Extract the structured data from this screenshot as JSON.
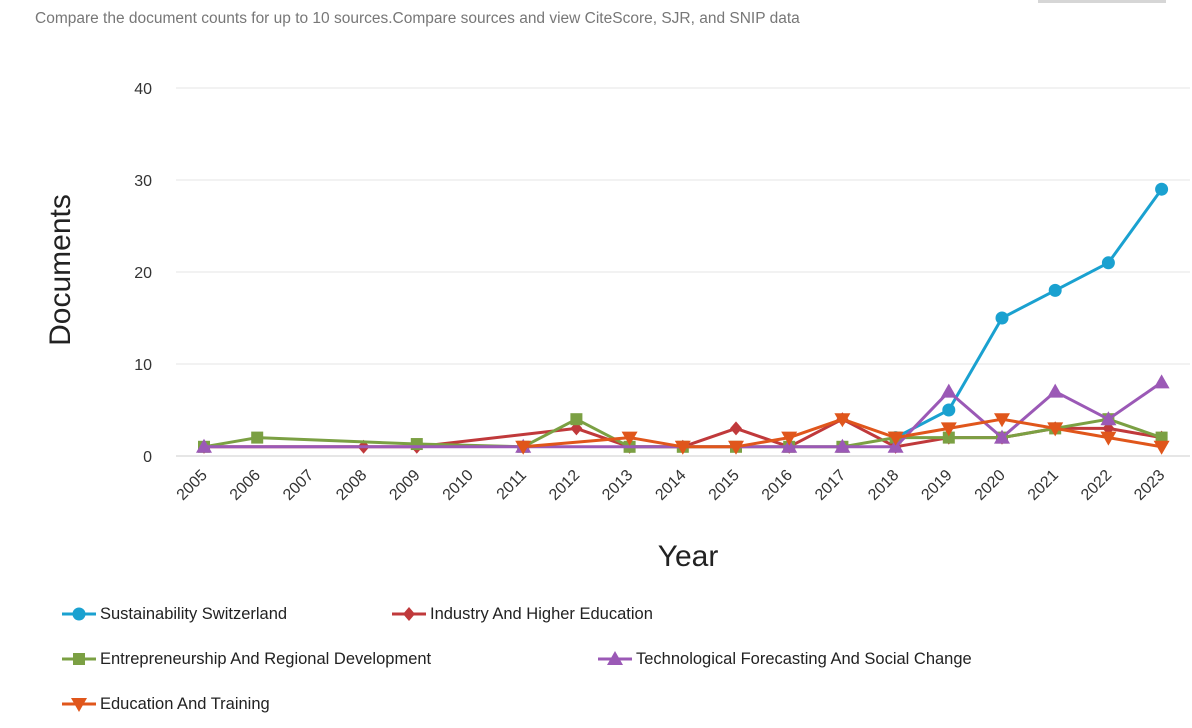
{
  "caption": "Compare the document counts for up to 10 sources.Compare sources and view CiteScore, SJR, and SNIP data",
  "chart_data": {
    "type": "line",
    "title": "",
    "xlabel": "Year",
    "ylabel": "Documents",
    "ylim": [
      0,
      40
    ],
    "yticks": [
      0,
      10,
      20,
      30,
      40
    ],
    "grid": true,
    "legend_position": "bottom",
    "categories": [
      "2005",
      "2006",
      "2007",
      "2008",
      "2009",
      "2010",
      "2011",
      "2012",
      "2013",
      "2014",
      "2015",
      "2016",
      "2017",
      "2018",
      "2019",
      "2020",
      "2021",
      "2022",
      "2023"
    ],
    "series": [
      {
        "name": "Sustainability Switzerland",
        "color": "#1aa1d0",
        "marker": "circle",
        "points": [
          [
            2018,
            2
          ],
          [
            2019,
            5
          ],
          [
            2020,
            15
          ],
          [
            2021,
            18
          ],
          [
            2022,
            21
          ],
          [
            2023,
            29
          ]
        ]
      },
      {
        "name": "Industry And Higher Education",
        "color": "#c0393b",
        "marker": "diamond",
        "points": [
          [
            2005,
            1
          ],
          [
            2008,
            1
          ],
          [
            2009,
            1
          ],
          [
            2012,
            3
          ],
          [
            2013,
            1
          ],
          [
            2014,
            1
          ],
          [
            2015,
            3
          ],
          [
            2016,
            1
          ],
          [
            2017,
            4
          ],
          [
            2018,
            1
          ],
          [
            2019,
            2
          ],
          [
            2020,
            2
          ],
          [
            2021,
            3
          ],
          [
            2022,
            3
          ],
          [
            2023,
            2
          ]
        ]
      },
      {
        "name": "Entrepreneurship And Regional Development",
        "color": "#7ba043",
        "marker": "square",
        "points": [
          [
            2005,
            1
          ],
          [
            2006,
            2
          ],
          [
            2009,
            1.3
          ],
          [
            2011,
            1
          ],
          [
            2012,
            4
          ],
          [
            2013,
            1
          ],
          [
            2014,
            1
          ],
          [
            2015,
            1
          ],
          [
            2016,
            1
          ],
          [
            2017,
            1
          ],
          [
            2018,
            2
          ],
          [
            2019,
            2
          ],
          [
            2020,
            2
          ],
          [
            2021,
            3
          ],
          [
            2022,
            4
          ],
          [
            2023,
            2
          ]
        ]
      },
      {
        "name": "Technological Forecasting And Social Change",
        "color": "#9b59b6",
        "marker": "triangle-up",
        "points": [
          [
            2005,
            1
          ],
          [
            2011,
            1
          ],
          [
            2016,
            1
          ],
          [
            2017,
            1
          ],
          [
            2018,
            1
          ],
          [
            2019,
            7
          ],
          [
            2020,
            2
          ],
          [
            2021,
            7
          ],
          [
            2022,
            4
          ],
          [
            2023,
            8
          ]
        ]
      },
      {
        "name": "Education And Training",
        "color": "#e0561b",
        "marker": "triangle-down",
        "points": [
          [
            2011,
            1
          ],
          [
            2013,
            2
          ],
          [
            2014,
            1
          ],
          [
            2015,
            1
          ],
          [
            2016,
            2
          ],
          [
            2017,
            4
          ],
          [
            2018,
            2
          ],
          [
            2019,
            3
          ],
          [
            2020,
            4
          ],
          [
            2021,
            3
          ],
          [
            2022,
            2
          ],
          [
            2023,
            1
          ]
        ]
      }
    ]
  }
}
